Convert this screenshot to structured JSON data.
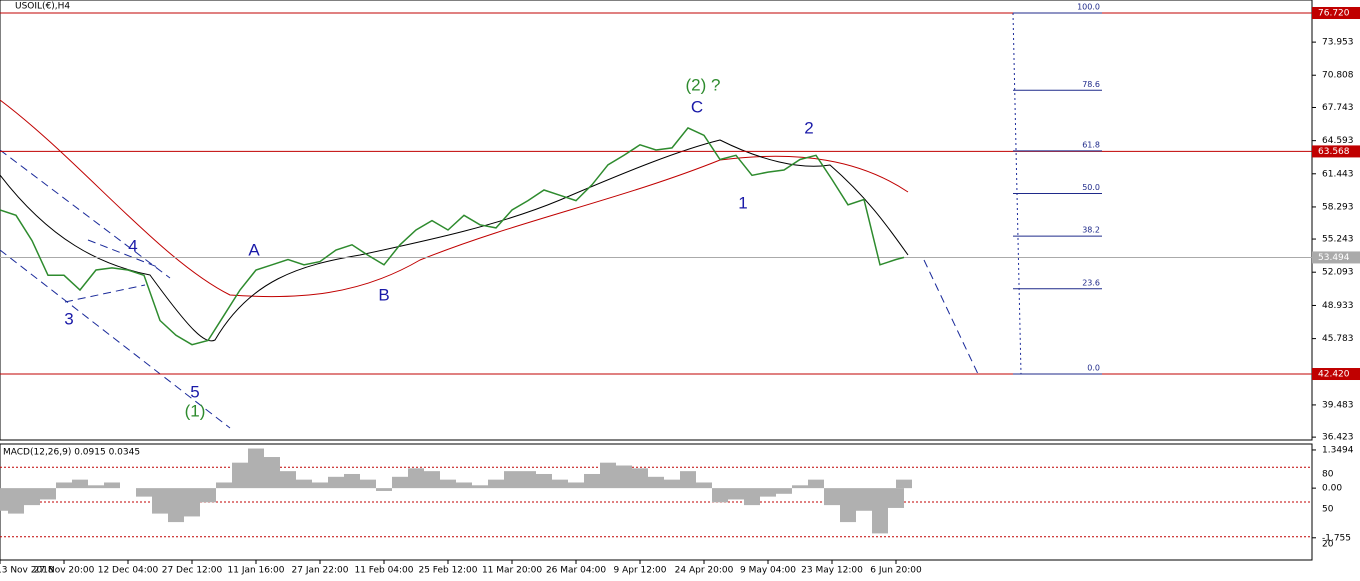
{
  "chart_data": {
    "type": "line",
    "title": "USOIL(€),H4",
    "xlim": [
      0,
      20.5
    ],
    "xticks": [
      {
        "value": 0,
        "label": "13 Nov 2018"
      },
      {
        "value": 1,
        "label": "27 Nov 20:00"
      },
      {
        "value": 2,
        "label": "12 Dec 04:00"
      },
      {
        "value": 3,
        "label": "27 Dec 12:00"
      },
      {
        "value": 4,
        "label": "11 Jan 16:00"
      },
      {
        "value": 5,
        "label": "27 Jan 22:00"
      },
      {
        "value": 6,
        "label": "11 Feb 04:00"
      },
      {
        "value": 7,
        "label": "25 Feb 12:00"
      },
      {
        "value": 8,
        "label": "11 Mar 20:00"
      },
      {
        "value": 9,
        "label": "26 Mar 04:00"
      },
      {
        "value": 10,
        "label": "9 Apr 12:00"
      },
      {
        "value": 11,
        "label": "24 Apr 20:00"
      },
      {
        "value": 12,
        "label": "9 May 04:00"
      },
      {
        "value": 13,
        "label": "23 May 12:00"
      },
      {
        "value": 14,
        "label": "6 Jun 20:00"
      }
    ],
    "ylim": [
      36.15,
      77.955
    ],
    "yticks": [
      {
        "value": 73.953,
        "label": "73.953"
      },
      {
        "value": 70.808,
        "label": "70.808"
      },
      {
        "value": 67.743,
        "label": "67.743"
      },
      {
        "value": 64.593,
        "label": "64.593"
      },
      {
        "value": 61.443,
        "label": "61.443"
      },
      {
        "value": 58.293,
        "label": "58.293"
      },
      {
        "value": 55.243,
        "label": "55.243"
      },
      {
        "value": 52.093,
        "label": "52.093"
      },
      {
        "value": 48.933,
        "label": "48.933"
      },
      {
        "value": 45.783,
        "label": "45.783"
      },
      {
        "value": 39.483,
        "label": "39.483"
      },
      {
        "value": 36.423,
        "label": "36.423"
      }
    ],
    "hlines": [
      {
        "value": 76.72,
        "label": "76.720",
        "color": "#c00000"
      },
      {
        "value": 63.568,
        "label": "63.568",
        "color": "#c00000"
      },
      {
        "value": 53.494,
        "label": "53.494",
        "color": "#aaaaaa"
      },
      {
        "value": 42.42,
        "label": "42.420",
        "color": "#c00000"
      }
    ],
    "fibonacci": {
      "color": "#1f2a8a",
      "levels": [
        {
          "value": 100,
          "label": "100.0"
        },
        {
          "value": 78.6,
          "label": "78.6"
        },
        {
          "value": 61.8,
          "label": "61.8"
        },
        {
          "value": 50,
          "label": "50.0"
        },
        {
          "value": 38.2,
          "label": "38.2"
        },
        {
          "value": 23.6,
          "label": "23.6"
        },
        {
          "value": 0,
          "label": "0.0"
        }
      ]
    },
    "x": [
      0,
      0.25,
      0.5,
      0.75,
      1,
      1.25,
      1.5,
      1.75,
      2,
      2.25,
      2.5,
      2.75,
      3,
      3.25,
      3.5,
      3.75,
      4,
      4.25,
      4.5,
      4.75,
      5,
      5.25,
      5.5,
      5.75,
      6,
      6.25,
      6.5,
      6.75,
      7,
      7.25,
      7.5,
      7.75,
      8,
      8.25,
      8.5,
      8.75,
      9,
      9.25,
      9.5,
      9.75,
      10,
      10.25,
      10.5,
      10.75,
      11,
      11.25,
      11.5,
      11.75,
      12,
      12.25,
      12.5,
      12.75,
      13,
      13.25,
      13.5,
      13.75,
      14,
      14.125
    ],
    "series": [
      {
        "name": "USOIL",
        "color": "#2e8b2e",
        "values": [
          58.0,
          57.5,
          55.1,
          51.8,
          51.8,
          50.4,
          52.3,
          52.5,
          52.3,
          51.8,
          47.5,
          46.1,
          45.2,
          45.6,
          48.0,
          50.4,
          52.3,
          52.8,
          53.3,
          52.8,
          53.1,
          54.2,
          54.7,
          53.7,
          52.8,
          54.7,
          56.1,
          57.0,
          56.1,
          57.5,
          56.6,
          56.3,
          58.0,
          58.9,
          59.9,
          59.4,
          58.9,
          60.4,
          62.3,
          63.2,
          64.2,
          63.7,
          63.9,
          65.8,
          65.1,
          62.8,
          63.2,
          61.3,
          61.6,
          61.8,
          62.8,
          63.2,
          60.9,
          58.5,
          59.0,
          52.8,
          53.3,
          53.5
        ]
      }
    ],
    "annotations": [
      {
        "text": "4",
        "color": "#1a1aa8"
      },
      {
        "text": "3",
        "color": "#1a1aa8"
      },
      {
        "text": "5",
        "color": "#1a1aa8"
      },
      {
        "text": "(1)",
        "color": "#2e8b2e"
      },
      {
        "text": "A",
        "color": "#1a1aa8"
      },
      {
        "text": "B",
        "color": "#1a1aa8"
      },
      {
        "text": "(2) ?",
        "color": "#2e8b2e"
      },
      {
        "text": "C",
        "color": "#1a1aa8"
      },
      {
        "text": "1",
        "color": "#1a1aa8"
      },
      {
        "text": "2",
        "color": "#1a1aa8"
      }
    ],
    "macd": {
      "title": "MACD(12,26,9) 0.0915 0.0345",
      "color": "#b0b0b0",
      "ylim": [
        -2.54,
        1.56
      ],
      "yticks": [
        1.3494,
        {
          "value": 0,
          "label": "0.00"
        },
        -1.755
      ],
      "level_lim": [
        0,
        100
      ],
      "levels": [
        80,
        50,
        20
      ],
      "values": [
        -0.8,
        -0.9,
        -0.6,
        -0.4,
        0.2,
        0.3,
        0.1,
        0.2,
        0.0,
        -0.3,
        -0.9,
        -1.2,
        -1.0,
        -0.5,
        0.2,
        0.9,
        1.4,
        1.1,
        0.6,
        0.3,
        0.2,
        0.4,
        0.5,
        0.3,
        -0.1,
        0.4,
        0.7,
        0.6,
        0.3,
        0.2,
        0.1,
        0.3,
        0.6,
        0.6,
        0.5,
        0.3,
        0.2,
        0.5,
        0.9,
        0.8,
        0.7,
        0.4,
        0.3,
        0.6,
        0.2,
        -0.5,
        -0.4,
        -0.6,
        -0.3,
        -0.2,
        0.1,
        0.3,
        -0.6,
        -1.2,
        -0.8,
        -1.6,
        -0.7,
        0.3
      ]
    }
  }
}
